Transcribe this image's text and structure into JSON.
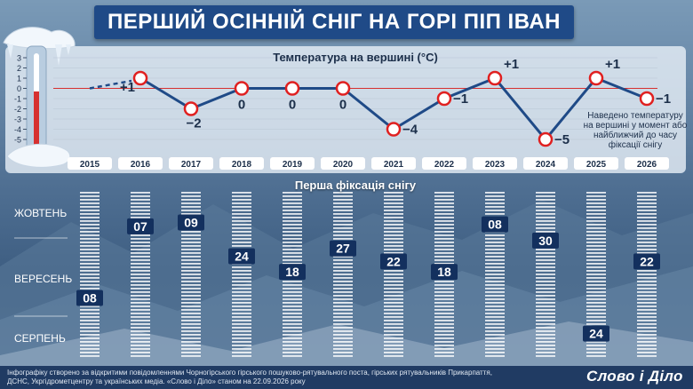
{
  "title": "ПЕРШИЙ ОСІННІЙ СНІГ НА ГОРІ ПІП ІВАН",
  "temperature_section": {
    "title": "Температура на вершині (°С)",
    "note": "Наведено температуру на вершині у момент або найближчий до часу фіксації снігу"
  },
  "snow_section": {
    "title": "Перша фіксація снігу"
  },
  "footer": {
    "text": "Інфографіку створено за відкритими повідомленнями Чорногірського гірського пошуково-рятувального поста, гірських рятувальників Прикарпаття, ДСНС, Укргідрометцентру та українських медіа. «Слово і Діло» станом на 22.09.2026 року",
    "logo": "Слово і Діло"
  },
  "colors": {
    "brand_blue": "#1f4a87",
    "label_dark_blue": "#13305e",
    "marker_red": "#e02020",
    "line_blue": "#1f4a87",
    "thermometer_red": "#d63030"
  },
  "chart_data": [
    {
      "type": "line",
      "title": "Температура на вершині (°С)",
      "categories": [
        "2015",
        "2016",
        "2017",
        "2018",
        "2019",
        "2020",
        "2021",
        "2022",
        "2023",
        "2024",
        "2025",
        "2026"
      ],
      "values": [
        null,
        1,
        -2,
        0,
        0,
        0,
        -4,
        -1,
        1,
        -5,
        1,
        -1
      ],
      "value_labels": [
        "",
        "+1",
        "−2",
        "0",
        "0",
        "0",
        "−4",
        "−1",
        "+1",
        "−5",
        "+1",
        "−1"
      ],
      "y_ticks": [
        "3",
        "2",
        "1",
        "0",
        "-1",
        "-2",
        "-3",
        "-4",
        "-5"
      ],
      "ylim": [
        -5,
        3
      ],
      "grid": true
    },
    {
      "type": "scatter",
      "title": "Перша фіксація снігу",
      "categories": [
        "2015",
        "2016",
        "2017",
        "2018",
        "2019",
        "2020",
        "2021",
        "2022",
        "2023",
        "2024",
        "2025",
        "2026"
      ],
      "months": [
        "ЖОВТЕНЬ",
        "ВЕРЕСЕНЬ",
        "СЕРПЕНЬ"
      ],
      "points": [
        {
          "year": "2015",
          "month": "ВЕРЕСЕНЬ",
          "day": "08"
        },
        {
          "year": "2016",
          "month": "ЖОВТЕНЬ",
          "day": "07"
        },
        {
          "year": "2017",
          "month": "ЖОВТЕНЬ",
          "day": "09"
        },
        {
          "year": "2018",
          "month": "ВЕРЕСЕНЬ",
          "day": "24"
        },
        {
          "year": "2019",
          "month": "ВЕРЕСЕНЬ",
          "day": "18"
        },
        {
          "year": "2020",
          "month": "ВЕРЕСЕНЬ",
          "day": "27"
        },
        {
          "year": "2021",
          "month": "ВЕРЕСЕНЬ",
          "day": "22"
        },
        {
          "year": "2022",
          "month": "ВЕРЕСЕНЬ",
          "day": "18"
        },
        {
          "year": "2023",
          "month": "ЖОВТЕНЬ",
          "day": "08"
        },
        {
          "year": "2024",
          "month": "ВЕРЕСЕНЬ",
          "day": "30"
        },
        {
          "year": "2025",
          "month": "СЕРПЕНЬ",
          "day": "24"
        },
        {
          "year": "2026",
          "month": "ВЕРЕСЕНЬ",
          "day": "22"
        }
      ]
    }
  ]
}
